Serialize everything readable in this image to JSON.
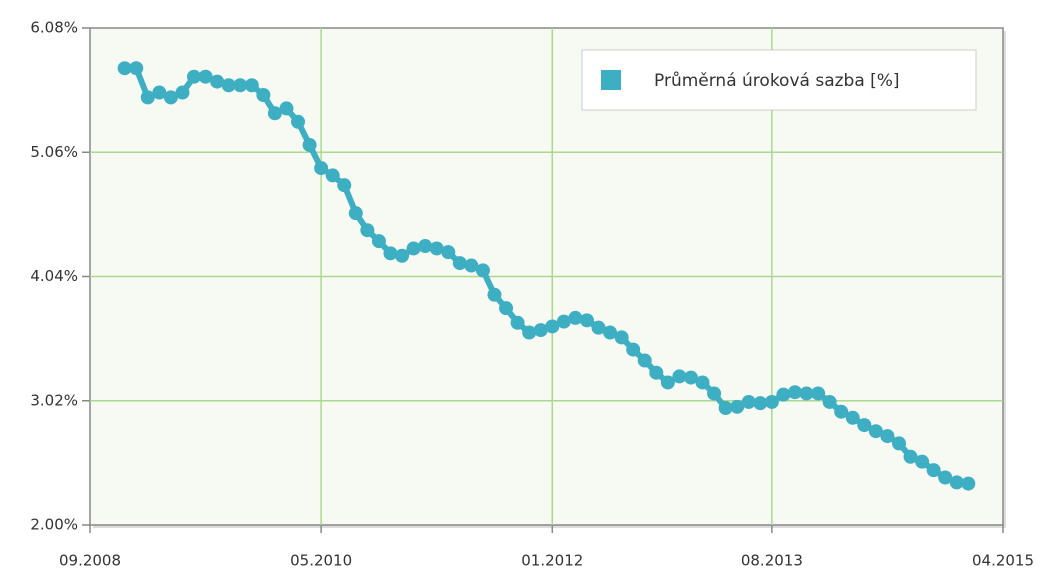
{
  "chart_data": {
    "type": "line",
    "x": [
      "2008-12",
      "2009-01",
      "2009-02",
      "2009-03",
      "2009-04",
      "2009-05",
      "2009-06",
      "2009-07",
      "2009-08",
      "2009-09",
      "2009-10",
      "2009-11",
      "2009-12",
      "2010-01",
      "2010-02",
      "2010-03",
      "2010-04",
      "2010-05",
      "2010-06",
      "2010-07",
      "2010-08",
      "2010-09",
      "2010-10",
      "2010-11",
      "2010-12",
      "2011-01",
      "2011-02",
      "2011-03",
      "2011-04",
      "2011-05",
      "2011-06",
      "2011-07",
      "2011-08",
      "2011-09",
      "2011-10",
      "2011-11",
      "2011-12",
      "2012-01",
      "2012-02",
      "2012-03",
      "2012-04",
      "2012-05",
      "2012-06",
      "2012-07",
      "2012-08",
      "2012-09",
      "2012-10",
      "2012-11",
      "2012-12",
      "2013-01",
      "2013-02",
      "2013-03",
      "2013-04",
      "2013-05",
      "2013-06",
      "2013-07",
      "2013-08",
      "2013-09",
      "2013-10",
      "2013-11",
      "2013-12",
      "2014-01",
      "2014-02",
      "2014-03",
      "2014-04",
      "2014-05",
      "2014-06",
      "2014-07",
      "2014-08",
      "2014-09",
      "2014-10",
      "2014-11",
      "2014-12",
      "2015-01"
    ],
    "series": [
      {
        "name": "Průměrná úroková sazba [%]",
        "color": "#3eafc2",
        "values": [
          5.75,
          5.75,
          5.51,
          5.55,
          5.51,
          5.55,
          5.68,
          5.68,
          5.64,
          5.61,
          5.61,
          5.61,
          5.53,
          5.38,
          5.42,
          5.31,
          5.12,
          4.93,
          4.87,
          4.79,
          4.56,
          4.42,
          4.33,
          4.23,
          4.21,
          4.27,
          4.29,
          4.27,
          4.24,
          4.15,
          4.13,
          4.09,
          3.89,
          3.78,
          3.66,
          3.58,
          3.6,
          3.63,
          3.67,
          3.7,
          3.68,
          3.62,
          3.58,
          3.54,
          3.44,
          3.35,
          3.25,
          3.17,
          3.22,
          3.21,
          3.17,
          3.08,
          2.96,
          2.97,
          3.01,
          3.0,
          3.01,
          3.07,
          3.09,
          3.08,
          3.08,
          3.01,
          2.93,
          2.88,
          2.82,
          2.77,
          2.73,
          2.67,
          2.56,
          2.52,
          2.45,
          2.39,
          2.35,
          2.34
        ]
      }
    ],
    "xlim": [
      "2008-09",
      "2015-04"
    ],
    "xticks": [
      {
        "value": "2008-09",
        "label": "09.2008"
      },
      {
        "value": "2010-05",
        "label": "05.2010"
      },
      {
        "value": "2012-01",
        "label": "01.2012"
      },
      {
        "value": "2013-08",
        "label": "08.2013"
      },
      {
        "value": "2015-04",
        "label": "04.2015"
      }
    ],
    "ylim": [
      2.0,
      6.08
    ],
    "yticks": [
      {
        "value": 2.0,
        "label": "2.00%"
      },
      {
        "value": 3.02,
        "label": "3.02%"
      },
      {
        "value": 4.04,
        "label": "4.04%"
      },
      {
        "value": 5.06,
        "label": "5.06%"
      },
      {
        "value": 6.08,
        "label": "6.08%"
      }
    ],
    "grid": true,
    "legend": "top-right"
  }
}
